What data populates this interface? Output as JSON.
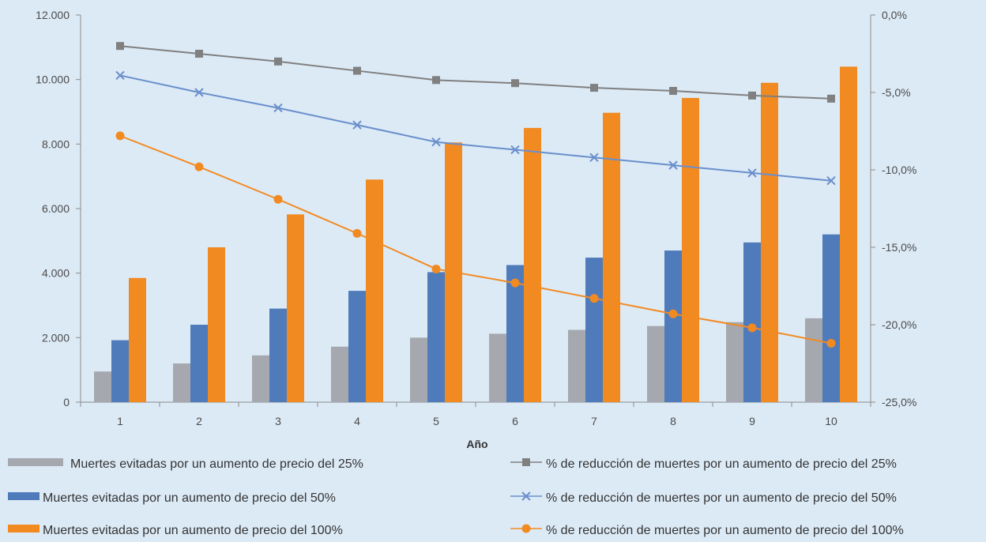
{
  "chart_data": {
    "type": "bar",
    "xlabel": "Año",
    "categories": [
      "1",
      "2",
      "3",
      "4",
      "5",
      "6",
      "7",
      "8",
      "9",
      "10"
    ],
    "y_left": {
      "ylim": [
        0,
        12000
      ],
      "ticks": [
        "0",
        "2.000",
        "4.000",
        "6.000",
        "8.000",
        "10.000",
        "12.000"
      ]
    },
    "y_right": {
      "ylim": [
        -25,
        0
      ],
      "ticks": [
        "0,0%",
        "-5,0%",
        "-10,0%",
        "-15,0%",
        "-20,0%",
        "-25,0%"
      ]
    },
    "grid": false,
    "bar_series": [
      {
        "name": "Muertes evitadas por un aumento de precio del 25%",
        "color": "#a5a8ae",
        "values": [
          950,
          1200,
          1450,
          1720,
          2000,
          2120,
          2240,
          2360,
          2480,
          2600
        ]
      },
      {
        "name": "Muertes evitadas por un aumento de precio del 50%",
        "color": "#4f7bbb",
        "values": [
          1920,
          2400,
          2900,
          3450,
          4030,
          4250,
          4480,
          4700,
          4950,
          5200
        ]
      },
      {
        "name": "Muertes evitadas por un aumento de precio del 100%",
        "color": "#f28a22",
        "values": [
          3850,
          4800,
          5820,
          6900,
          8050,
          8500,
          8970,
          9430,
          9900,
          10400
        ]
      }
    ],
    "line_series": [
      {
        "name": "% de reducción de muertes por un aumento de precio del 25%",
        "color": "#808080",
        "marker": "square",
        "values": [
          -2.0,
          -2.5,
          -3.0,
          -3.6,
          -4.2,
          -4.4,
          -4.7,
          -4.9,
          -5.2,
          -5.4
        ]
      },
      {
        "name": "% de reducción de muertes por un aumento de precio del 50%",
        "color": "#6a8fcb",
        "marker": "x",
        "values": [
          -3.9,
          -5.0,
          -6.0,
          -7.1,
          -8.2,
          -8.7,
          -9.2,
          -9.7,
          -10.2,
          -10.7
        ]
      },
      {
        "name": "% de reducción de muertes por un aumento de precio del 100%",
        "color": "#f28a22",
        "marker": "circle",
        "values": [
          -7.8,
          -9.8,
          -11.9,
          -14.1,
          -16.4,
          -17.3,
          -18.3,
          -19.3,
          -20.2,
          -21.2
        ]
      }
    ],
    "legend_position": "bottom"
  }
}
